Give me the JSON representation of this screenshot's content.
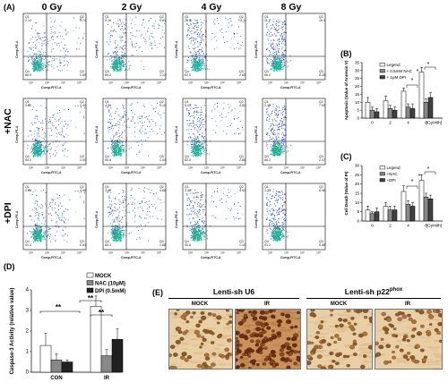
{
  "panels": {
    "A": "(A)",
    "B": "(B)",
    "C": "(C)",
    "D": "(D)",
    "E": "(E)"
  },
  "flow": {
    "columns": [
      "0 Gy",
      "2 Gy",
      "4 Gy",
      "8 Gy"
    ],
    "rows": [
      "",
      "+NAC",
      "+DPI"
    ],
    "xlabel": "Comp-FITC-A",
    "ylabel": "Comp-PE-A",
    "ticks_x": [
      "10²",
      "10³",
      "10⁴",
      "10⁵"
    ],
    "quadrants": [
      [
        [
          "Q1",
          "0.10",
          "Q2",
          "5.74",
          "Q4",
          "88.9",
          "Q3",
          "1.89"
        ],
        [
          "Q1",
          "0.16",
          "Q2",
          "9.81",
          "Q4",
          "89.2",
          "Q3",
          "1.13"
        ],
        [
          "Q1",
          "22.2",
          "Q2",
          "11.4",
          "Q4",
          "62.5",
          "Q3",
          "2.65"
        ],
        [
          "Q1",
          "11.2",
          "Q2",
          "16.9",
          "Q4",
          "66.2",
          "Q3",
          "8.28"
        ]
      ],
      [
        [
          "Q1",
          "0.40",
          "Q2",
          "2.40",
          "Q4",
          "94.2",
          "Q3",
          "1.00"
        ],
        [
          "Q1",
          "4.04",
          "Q2",
          "5.10",
          "Q4",
          "90.8",
          "Q3",
          "1.03"
        ],
        [
          "Q1",
          "5.01",
          "Q2",
          "4.82",
          "Q4",
          "82.5",
          "Q3",
          "2.85"
        ],
        [
          "Q1",
          "3.36",
          "Q2",
          "7.99",
          "Q4",
          "86.3",
          "Q3",
          "2.07"
        ]
      ],
      [
        [
          "Q1",
          "0.48",
          "Q2",
          "4.98",
          "Q4",
          "91.3",
          "Q3",
          "0.61"
        ],
        [
          "Q1",
          "3.40",
          "Q2",
          "4.88",
          "Q4",
          "89.3",
          "Q3",
          "1.88"
        ],
        [
          "Q1",
          "2.48",
          "Q2",
          "4.51",
          "Q4",
          "90.8",
          "Q3",
          "1.49"
        ],
        [
          "Q1",
          "1.33",
          "Q2",
          "6.56",
          "Q4",
          "91.2",
          "Q3",
          "0.88"
        ]
      ]
    ]
  },
  "chart_data": [
    {
      "type": "bar",
      "panel": "B",
      "categories": [
        "0",
        "2",
        "4",
        "8"
      ],
      "xlabel": "[Gy/48h]",
      "ylabel": "Apoptosis (Value of Annexin V)",
      "yticks": [
        "0",
        "5",
        "10",
        "15",
        "20",
        "25",
        "30",
        "35"
      ],
      "ylim": [
        0,
        35
      ],
      "series": [
        {
          "name": "Legend",
          "color": "#ffffff",
          "values": [
            10,
            11,
            17,
            29
          ],
          "errors": [
            3,
            3,
            2,
            3
          ]
        },
        {
          "name": "+ 0.5mM NAC",
          "color": "#888888",
          "values": [
            5,
            6,
            7,
            10
          ],
          "errors": [
            2,
            2,
            2,
            2
          ]
        },
        {
          "name": "+ 1μM DPI",
          "color": "#404040",
          "values": [
            4,
            5,
            6,
            13
          ],
          "errors": [
            2,
            2,
            3,
            3
          ]
        }
      ],
      "annotations": [
        "*",
        "*",
        "*"
      ]
    },
    {
      "type": "bar",
      "panel": "C",
      "categories": [
        "0",
        "2",
        "4",
        "8"
      ],
      "xlabel": "[Gy/48h]",
      "ylabel": "Cell Death (Value of PI)",
      "yticks": [
        "0",
        "5",
        "10",
        "15",
        "20",
        "25",
        "30"
      ],
      "ylim": [
        0,
        30
      ],
      "series": [
        {
          "name": "Legend",
          "color": "#ffffff",
          "values": [
            6,
            8,
            16,
            22
          ],
          "errors": [
            2,
            2,
            3,
            3
          ]
        },
        {
          "name": "+NAC",
          "color": "#888888",
          "values": [
            4,
            6,
            9,
            13
          ],
          "errors": [
            1,
            2,
            2,
            2
          ]
        },
        {
          "name": "+DPI",
          "color": "#404040",
          "values": [
            5,
            6,
            8,
            12
          ],
          "errors": [
            2,
            2,
            2,
            2
          ]
        }
      ],
      "annotations": [
        "*",
        "*",
        "*"
      ]
    },
    {
      "type": "bar",
      "panel": "D",
      "categories": [
        "CON",
        "IR"
      ],
      "ylabel": "Caspase-3 Activity (relative value)",
      "yticks": [
        "0",
        "1",
        "2",
        "3",
        "4"
      ],
      "ylim": [
        0,
        4
      ],
      "series": [
        {
          "name": "MOCK",
          "color": "#ffffff",
          "values": [
            1.3,
            3.2
          ],
          "errors": [
            0.6,
            0.5
          ]
        },
        {
          "name": "NAC (10μM)",
          "color": "#888888",
          "values": [
            0.6,
            0.8
          ],
          "errors": [
            0.3,
            0.3
          ]
        },
        {
          "name": "DPI (0.5mM)",
          "color": "#202020",
          "values": [
            0.5,
            1.6
          ],
          "errors": [
            0.1,
            0.5
          ]
        }
      ],
      "annotations": [
        "**",
        "**",
        "**"
      ]
    }
  ],
  "ihc": {
    "group1": "Lenti-sh U6",
    "group2": "Lenti-sh p22",
    "group2_sup": "phox",
    "sub": [
      "MOCK",
      "IR",
      "MOCK",
      "IR"
    ]
  }
}
